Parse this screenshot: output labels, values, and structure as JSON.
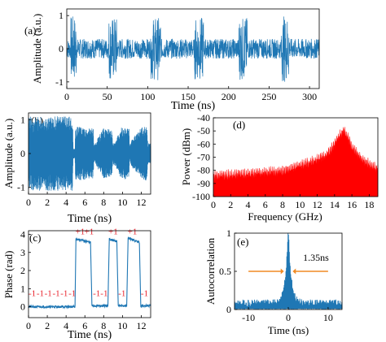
{
  "chart_data": [
    {
      "panel": "(a)",
      "type": "line",
      "xlabel": "Time (ns)",
      "ylabel": "Amplitude (a.u.)",
      "xlim": [
        0,
        312
      ],
      "ylim": [
        -1.2,
        1.2
      ],
      "xticks": [
        0,
        50,
        100,
        150,
        200,
        250,
        300
      ],
      "yticks": [
        -1,
        0,
        1
      ],
      "series": [
        {
          "color": "#1f77b4",
          "baseline_amplitude": 0.3,
          "bursts": [
            {
              "start": 5,
              "end": 12,
              "amplitude": 1.0
            },
            {
              "start": 52,
              "end": 62,
              "amplitude": 0.95
            },
            {
              "start": 104,
              "end": 116,
              "amplitude": 0.95
            },
            {
              "start": 158,
              "end": 169,
              "amplitude": 0.95
            },
            {
              "start": 212,
              "end": 223,
              "amplitude": 0.95
            },
            {
              "start": 265,
              "end": 275,
              "amplitude": 1.0
            }
          ]
        }
      ]
    },
    {
      "panel": "(b)",
      "type": "line",
      "xlabel": "Time (ns)",
      "ylabel": "Amplitude (a.u.)",
      "xlim": [
        0,
        13
      ],
      "ylim": [
        -1.2,
        1.2
      ],
      "xticks": [
        0,
        2,
        4,
        6,
        8,
        10,
        12
      ],
      "yticks": [
        -1,
        0,
        1
      ],
      "series": [
        {
          "color": "#1f77b4",
          "envelope": [
            [
              0,
              1.1
            ],
            [
              4.7,
              1.1
            ],
            [
              4.75,
              0.15
            ],
            [
              4.95,
              0.15
            ],
            [
              5.0,
              0.8
            ],
            [
              6.9,
              0.75
            ],
            [
              6.95,
              0.25
            ],
            [
              7.2,
              0.35
            ],
            [
              7.9,
              0.75
            ],
            [
              8.9,
              0.7
            ],
            [
              8.95,
              0.3
            ],
            [
              9.3,
              0.4
            ],
            [
              9.9,
              0.8
            ],
            [
              10.7,
              0.75
            ],
            [
              10.75,
              0.25
            ],
            [
              11.0,
              0.4
            ],
            [
              12.0,
              0.8
            ],
            [
              12.6,
              0.8
            ],
            [
              12.7,
              0.3
            ],
            [
              13.0,
              0.3
            ]
          ]
        }
      ]
    },
    {
      "panel": "(c)",
      "type": "line",
      "xlabel": "Time (ns)",
      "ylabel": "Phase (rad)",
      "xlim": [
        0,
        13
      ],
      "ylim": [
        -0.6,
        4.2
      ],
      "xticks": [
        0,
        2,
        4,
        6,
        8,
        10,
        12
      ],
      "yticks": [
        0,
        1,
        2,
        3,
        4
      ],
      "series": [
        {
          "color": "#1f77b4",
          "points": [
            [
              0,
              0.0
            ],
            [
              4.95,
              0.0
            ],
            [
              5.05,
              3.75
            ],
            [
              6.6,
              3.55
            ],
            [
              6.75,
              0.05
            ],
            [
              8.45,
              0.05
            ],
            [
              8.6,
              3.75
            ],
            [
              9.4,
              3.6
            ],
            [
              9.55,
              0.05
            ],
            [
              10.45,
              0.05
            ],
            [
              10.6,
              3.8
            ],
            [
              11.8,
              3.55
            ],
            [
              11.95,
              0.05
            ],
            [
              13.0,
              0.05
            ]
          ]
        }
      ],
      "annotations": [
        {
          "text": "-1",
          "x": 0.4,
          "y": 0.6
        },
        {
          "text": "-1",
          "x": 1.25,
          "y": 0.6
        },
        {
          "text": "-1",
          "x": 2.1,
          "y": 0.6
        },
        {
          "text": "-1",
          "x": 2.95,
          "y": 0.6
        },
        {
          "text": "-1",
          "x": 3.8,
          "y": 0.6
        },
        {
          "text": "-1",
          "x": 4.65,
          "y": 0.6
        },
        {
          "text": "+1",
          "x": 5.5,
          "y": 4.0
        },
        {
          "text": "+1",
          "x": 6.45,
          "y": 4.0
        },
        {
          "text": "-1",
          "x": 7.25,
          "y": 0.6
        },
        {
          "text": "-1",
          "x": 8.05,
          "y": 0.6
        },
        {
          "text": "+1",
          "x": 9.0,
          "y": 4.0
        },
        {
          "text": "-1",
          "x": 9.95,
          "y": 0.6
        },
        {
          "text": "+1",
          "x": 11.05,
          "y": 4.0
        },
        {
          "text": "-1",
          "x": 12.35,
          "y": 0.6
        }
      ],
      "annotation_color": "#e8202a"
    },
    {
      "panel": "(d)",
      "type": "area",
      "xlabel": "Frequency (GHz)",
      "ylabel": "Power (dBm)",
      "xlim": [
        0,
        19
      ],
      "ylim": [
        -100,
        -40
      ],
      "xticks": [
        0,
        2,
        4,
        6,
        8,
        10,
        12,
        14,
        16,
        18
      ],
      "yticks": [
        -100,
        -90,
        -80,
        -70,
        -60,
        -50,
        -40
      ],
      "series": [
        {
          "color": "#ff0000",
          "points": [
            [
              0,
              -82
            ],
            [
              2,
              -81
            ],
            [
              4,
              -80
            ],
            [
              6,
              -79
            ],
            [
              8,
              -78
            ],
            [
              9,
              -76
            ],
            [
              10,
              -74
            ],
            [
              11,
              -72
            ],
            [
              12,
              -69
            ],
            [
              13,
              -66
            ],
            [
              13.8,
              -60
            ],
            [
              14.5,
              -52
            ],
            [
              15.0,
              -47
            ],
            [
              15.5,
              -52
            ],
            [
              16.0,
              -60
            ],
            [
              17.0,
              -68
            ],
            [
              18.0,
              -73
            ],
            [
              19.0,
              -76
            ]
          ]
        }
      ]
    },
    {
      "panel": "(e)",
      "type": "line",
      "xlabel": "Time (ns)",
      "ylabel": "Autocorrelation",
      "xlim": [
        -13.5,
        13.5
      ],
      "ylim": [
        0,
        1
      ],
      "xticks": [
        -10,
        0,
        10
      ],
      "yticks": [
        0,
        0.5,
        1
      ],
      "series": [
        {
          "color": "#1f77b4",
          "baseline_level": 0.1,
          "peak": {
            "x": 0,
            "y": 1.0,
            "fwhm": 1.35
          }
        }
      ],
      "annotations": [
        {
          "text": "1.35ns",
          "x": 3.7,
          "y": 0.64
        }
      ],
      "arrow_color": "#f08a24"
    }
  ]
}
